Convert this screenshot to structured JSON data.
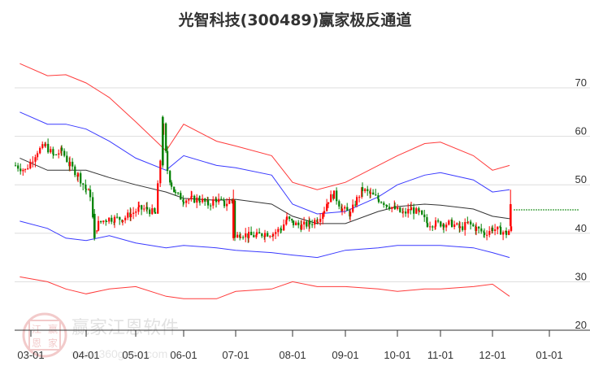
{
  "title": "光智科技(300489)赢家极反通道",
  "watermark": {
    "text": "赢家江恩软件",
    "url": "www.360gann.com",
    "seal": [
      "江",
      "赢",
      "恩",
      "家"
    ]
  },
  "colors": {
    "up": "#ff0000",
    "down": "#008000",
    "outer_band": "#ff3333",
    "inner_band": "#3333ff",
    "mid_line": "#333333",
    "target_line": "#008000",
    "grid": "#dddddd"
  },
  "chart_data": {
    "type": "candlestick",
    "title": "光智科技(300489)赢家极反通道",
    "xlabel": "",
    "ylabel": "",
    "ylim": [
      20,
      75
    ],
    "yticks": [
      20,
      30,
      40,
      50,
      60,
      70
    ],
    "xticks": [
      "03-01",
      "04-01",
      "05-01",
      "06-01",
      "07-01",
      "08-01",
      "09-01",
      "10-01",
      "11-01",
      "12-01",
      "01-01"
    ],
    "grid": true,
    "legend": null,
    "target_level": 46,
    "series": [
      {
        "name": "outer_upper",
        "color": "red",
        "x": [
          "02-25",
          "03-10",
          "03-20",
          "04-01",
          "04-15",
          "05-01",
          "05-20",
          "06-01",
          "06-20",
          "07-01",
          "07-20",
          "08-01",
          "08-15",
          "09-01",
          "09-20",
          "10-01",
          "10-20",
          "11-01",
          "11-20",
          "12-01",
          "12-10"
        ],
        "values": [
          75,
          72.5,
          72.7,
          71,
          68,
          63,
          57,
          62.5,
          59,
          58,
          56,
          50.5,
          49,
          50.5,
          54,
          56,
          58.5,
          58.8,
          56,
          53,
          54
        ]
      },
      {
        "name": "inner_upper",
        "color": "blue",
        "x": [
          "02-25",
          "03-10",
          "03-20",
          "04-01",
          "04-15",
          "05-01",
          "05-20",
          "06-01",
          "06-20",
          "07-01",
          "07-20",
          "08-01",
          "08-15",
          "09-01",
          "09-20",
          "10-01",
          "10-20",
          "11-01",
          "11-20",
          "12-01",
          "12-10"
        ],
        "values": [
          65,
          62.5,
          62.5,
          61.5,
          59,
          55.5,
          53,
          56,
          54,
          53.5,
          52,
          46,
          44,
          44.5,
          47.5,
          50,
          52,
          52.5,
          51,
          48.5,
          49
        ]
      },
      {
        "name": "middle",
        "color": "black",
        "x": [
          "02-25",
          "03-10",
          "03-20",
          "04-01",
          "04-15",
          "05-01",
          "05-20",
          "06-01",
          "06-20",
          "07-01",
          "07-20",
          "08-01",
          "08-15",
          "09-01",
          "09-20",
          "10-01",
          "10-20",
          "11-01",
          "11-20",
          "12-01",
          "12-10"
        ],
        "values": [
          55.5,
          53,
          53,
          53,
          51.5,
          50,
          48.5,
          47.2,
          46.8,
          47,
          46,
          43.5,
          42,
          42,
          44.5,
          45.5,
          46,
          45.8,
          45,
          43.5,
          43
        ]
      },
      {
        "name": "inner_lower",
        "color": "blue",
        "x": [
          "02-25",
          "03-10",
          "03-20",
          "04-01",
          "04-15",
          "05-01",
          "05-20",
          "06-01",
          "06-20",
          "07-01",
          "07-20",
          "08-01",
          "08-15",
          "09-01",
          "09-20",
          "10-01",
          "10-20",
          "11-01",
          "11-20",
          "12-01",
          "12-10"
        ],
        "values": [
          42.5,
          41,
          39,
          38.5,
          39.5,
          38,
          37,
          37.5,
          37,
          36.5,
          36,
          35.5,
          35,
          36.5,
          37,
          37.5,
          37.5,
          37.5,
          37,
          36,
          35
        ]
      },
      {
        "name": "outer_lower",
        "color": "red",
        "x": [
          "02-25",
          "03-10",
          "03-20",
          "04-01",
          "04-15",
          "05-01",
          "05-20",
          "06-01",
          "06-20",
          "07-01",
          "07-20",
          "08-01",
          "08-15",
          "09-01",
          "09-20",
          "10-01",
          "10-20",
          "11-01",
          "11-20",
          "12-01",
          "12-10"
        ],
        "values": [
          31,
          30,
          28.5,
          27.5,
          28.5,
          29,
          27,
          26.5,
          26.5,
          28,
          28.5,
          30,
          29,
          29,
          28.5,
          28,
          28.5,
          28.5,
          29,
          29.5,
          27
        ]
      }
    ],
    "price_summary": {
      "start": 54,
      "high": 64,
      "low": 39,
      "last": 46,
      "last_high": 49
    }
  }
}
